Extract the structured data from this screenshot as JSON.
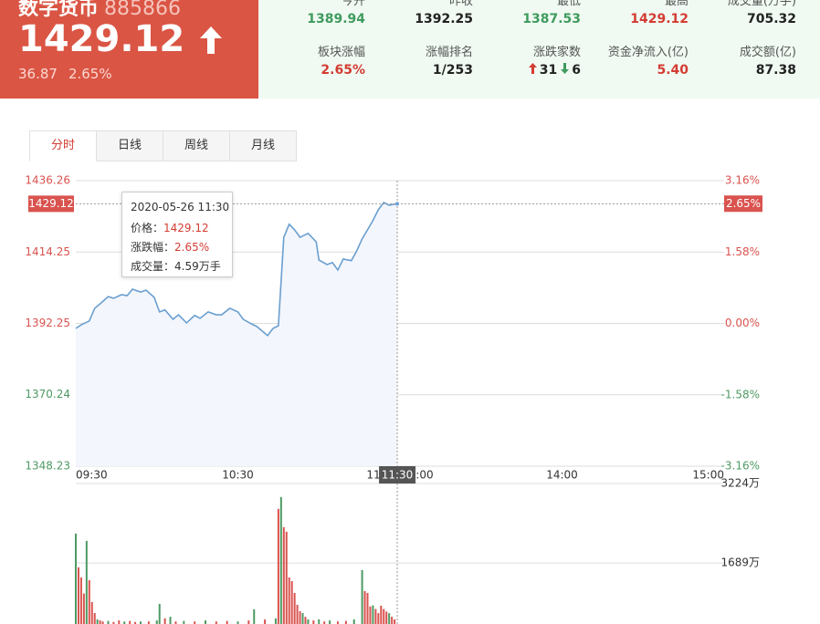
{
  "header": {
    "name": "数字货币",
    "code": "885866",
    "price": "1429.12",
    "change": "36.87",
    "change_pct": "2.65%"
  },
  "stats": {
    "rows": [
      [
        {
          "label": "今开",
          "value": "1389.94",
          "color": "#3f9b5e"
        },
        {
          "label": "昨收",
          "value": "1392.25",
          "color": "#222222"
        },
        {
          "label": "最低",
          "value": "1387.53",
          "color": "#3f9b5e"
        },
        {
          "label": "最高",
          "value": "1429.12",
          "color": "#d43c33"
        },
        {
          "label": "成交量(万手)",
          "value": "705.32",
          "color": "#222222"
        }
      ],
      [
        {
          "label": "板块涨幅",
          "value": "2.65%",
          "color": "#d43c33"
        },
        {
          "label": "涨幅排名",
          "value": "1/253",
          "color": "#222222"
        },
        {
          "label": "涨跌家数",
          "up": 31,
          "down": 6,
          "color": "#222222"
        },
        {
          "label": "资金净流入(亿)",
          "value": "5.40",
          "color": "#d43c33"
        },
        {
          "label": "成交额(亿)",
          "value": "87.38",
          "color": "#222222"
        }
      ]
    ]
  },
  "tabs": [
    "分时",
    "日线",
    "周线",
    "月线"
  ],
  "active_tab": 0,
  "tooltip": {
    "time": "2020-05-26 11:30",
    "rows": [
      {
        "label": "价格：",
        "value": "1429.12",
        "color": "#d43c33"
      },
      {
        "label": "涨跌幅：",
        "value": "2.65%",
        "color": "#d43c33"
      },
      {
        "label": "成交量：",
        "value": "4.59万手",
        "color": "#333333"
      }
    ]
  },
  "chart_data": [
    {
      "type": "line",
      "x": [
        0,
        2,
        5,
        7,
        9,
        12,
        14,
        17,
        19,
        21,
        24,
        26,
        29,
        31,
        33,
        36,
        38,
        41,
        44,
        46,
        49,
        52,
        54,
        57,
        60,
        62,
        65,
        67,
        71,
        73,
        75,
        77,
        79,
        81,
        83,
        86,
        89,
        90,
        93,
        95,
        97,
        99,
        102,
        104,
        106,
        108,
        110,
        112,
        114,
        116,
        118,
        119
      ],
      "series": [
        {
          "color": "#6a9fd0",
          "values": [
            1390.7,
            1391.8,
            1393.0,
            1396.9,
            1398.3,
            1400.5,
            1400.0,
            1401.1,
            1400.8,
            1402.8,
            1401.9,
            1402.5,
            1400.3,
            1395.8,
            1396.4,
            1393.5,
            1394.9,
            1392.4,
            1394.7,
            1393.8,
            1395.8,
            1394.9,
            1394.9,
            1396.9,
            1395.8,
            1393.5,
            1392.1,
            1391.3,
            1388.5,
            1390.7,
            1391.5,
            1418.8,
            1422.8,
            1421.1,
            1418.8,
            1420.0,
            1417.4,
            1411.8,
            1410.4,
            1411.0,
            1408.7,
            1412.1,
            1411.6,
            1414.6,
            1418.3,
            1421.1,
            1424.0,
            1427.3,
            1429.5,
            1428.7,
            1429.0,
            1429.12
          ]
        }
      ],
      "xlim": [
        0,
        240
      ],
      "xticks": [
        {
          "value": 0,
          "label": "09:30"
        },
        {
          "value": 60,
          "label": "10:30"
        },
        {
          "value": 120,
          "label": "11:30/13:00"
        },
        {
          "value": 180,
          "label": "14:00"
        },
        {
          "value": 240,
          "label": "15:00"
        }
      ],
      "ylim": [
        1348.23,
        1436.26
      ],
      "yticks": [
        1348.23,
        1370.24,
        1392.25,
        1414.25,
        1436.26
      ],
      "y2lim": [
        -3.16,
        3.16
      ],
      "y2ticks": [
        {
          "value": -3.16,
          "label": "-3.16%"
        },
        {
          "value": -1.58,
          "label": "-1.58%"
        },
        {
          "value": 0,
          "label": "0.00%"
        },
        {
          "value": 1.58,
          "label": "1.58%"
        },
        {
          "value": 3.16,
          "label": "3.16%"
        }
      ],
      "grid": true,
      "crosshair": {
        "x": 119,
        "x_label": "11:30",
        "y": 1429.12,
        "y2": {
          "value": 2.65,
          "label": "2.65%"
        }
      }
    },
    {
      "type": "bar",
      "x": [
        0,
        1,
        2,
        3,
        4,
        5,
        6,
        7,
        8,
        9,
        10,
        12,
        14,
        16,
        18,
        20,
        22,
        24,
        27,
        30,
        31,
        33,
        35,
        37,
        40,
        44,
        48,
        52,
        56,
        60,
        64,
        66,
        70,
        74,
        75,
        76,
        77,
        78,
        79,
        80,
        81,
        82,
        83,
        84,
        85,
        86,
        88,
        90,
        92,
        94,
        97,
        100,
        103,
        106,
        107,
        108,
        109,
        110,
        111,
        112,
        113,
        114,
        115,
        116,
        117,
        118
      ],
      "values": [
        2257,
        1605,
        1411,
        1100,
        2116,
        1358,
        935,
        723,
        600,
        580,
        560,
        570,
        550,
        580,
        560,
        570,
        550,
        560,
        560,
        580,
        900,
        620,
        650,
        560,
        570,
        560,
        580,
        560,
        570,
        560,
        580,
        794,
        600,
        620,
        2734,
        2963,
        2381,
        2293,
        1411,
        1340,
        1111,
        882,
        758,
        723,
        650,
        600,
        580,
        600,
        560,
        580,
        560,
        570,
        600,
        1552,
        1146,
        1111,
        850,
        870,
        800,
        720,
        864,
        800,
        750,
        720,
        650,
        600
      ],
      "colors": [
        "#4e9a63",
        "#d9534f",
        "#d9534f",
        "#d9534f",
        "#4e9a63",
        "#d9534f",
        "#d9534f",
        "#d9534f",
        "#4e9a63",
        "#d9534f",
        "#d9534f",
        "#4e9a63",
        "#d9534f",
        "#d9534f",
        "#4e9a63",
        "#d9534f",
        "#d9534f",
        "#4e9a63",
        "#d9534f",
        "#4e9a63",
        "#4e9a63",
        "#d9534f",
        "#4e9a63",
        "#d9534f",
        "#4e9a63",
        "#d9534f",
        "#4e9a63",
        "#d9534f",
        "#d9534f",
        "#4e9a63",
        "#d9534f",
        "#4e9a63",
        "#d9534f",
        "#4e9a63",
        "#d9534f",
        "#4e9a63",
        "#d9534f",
        "#d9534f",
        "#d9534f",
        "#d9534f",
        "#d9534f",
        "#d9534f",
        "#d9534f",
        "#4e9a63",
        "#d9534f",
        "#4e9a63",
        "#d9534f",
        "#4e9a63",
        "#d9534f",
        "#4e9a63",
        "#d9534f",
        "#d9534f",
        "#4e9a63",
        "#4e9a63",
        "#d9534f",
        "#d9534f",
        "#d9534f",
        "#4e9a63",
        "#d9534f",
        "#d9534f",
        "#d9534f",
        "#d9534f",
        "#d9534f",
        "#4e9a63",
        "#d9534f",
        "#d9534f"
      ],
      "xlim": [
        0,
        240
      ],
      "ylim": [
        0,
        3224
      ],
      "yticks": [
        {
          "value": 1689,
          "label": "1689万"
        },
        {
          "value": 3224,
          "label": "3224万"
        }
      ],
      "grid": true
    }
  ]
}
